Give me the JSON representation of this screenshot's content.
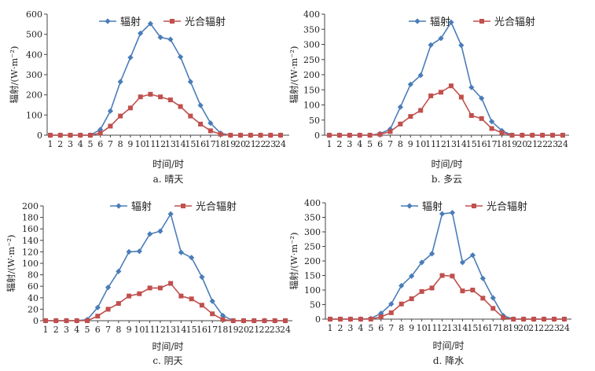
{
  "colors": {
    "radiation": "#4a7db8",
    "par": "#c0504d"
  },
  "chart_data": [
    {
      "type": "line",
      "caption": "a. 晴天",
      "xlabel": "时间/时",
      "ylabel": "辐射/(W·m⁻²)",
      "ylim": [
        0,
        600
      ],
      "yticks": [
        0,
        100,
        200,
        300,
        400,
        500,
        600
      ],
      "categories": [
        "1",
        "2",
        "3",
        "4",
        "5",
        "6",
        "7",
        "8",
        "9",
        "10",
        "11",
        "12",
        "13",
        "14",
        "15",
        "16",
        "17",
        "18",
        "19",
        "20",
        "21",
        "22",
        "23",
        "24"
      ],
      "legend": "top",
      "series": [
        {
          "name": "辐射",
          "values": [
            0,
            0,
            0,
            0,
            0,
            28,
            120,
            265,
            385,
            505,
            553,
            485,
            475,
            388,
            265,
            148,
            60,
            10,
            0,
            0,
            0,
            0,
            0,
            0
          ]
        },
        {
          "name": "光合辐射",
          "values": [
            0,
            0,
            0,
            0,
            0,
            10,
            45,
            95,
            135,
            190,
            203,
            190,
            175,
            142,
            95,
            55,
            22,
            5,
            0,
            0,
            0,
            0,
            0,
            0
          ]
        }
      ]
    },
    {
      "type": "line",
      "caption": "b. 多云",
      "xlabel": "时间/时",
      "ylabel": "辐射/(W·m⁻²)",
      "ylim": [
        0,
        400
      ],
      "yticks": [
        0,
        50,
        100,
        150,
        200,
        250,
        300,
        350,
        400
      ],
      "categories": [
        "1",
        "2",
        "3",
        "4",
        "5",
        "6",
        "7",
        "8",
        "9",
        "10",
        "11",
        "12",
        "13",
        "14",
        "15",
        "16",
        "17",
        "18",
        "19",
        "20",
        "21",
        "22",
        "23",
        "24"
      ],
      "legend": "top",
      "series": [
        {
          "name": "辐射",
          "values": [
            0,
            0,
            0,
            0,
            0,
            5,
            20,
            93,
            168,
            198,
            298,
            320,
            373,
            297,
            158,
            122,
            45,
            15,
            0,
            0,
            0,
            0,
            0,
            0
          ]
        },
        {
          "name": "光合辐射",
          "values": [
            0,
            0,
            0,
            0,
            0,
            3,
            12,
            37,
            62,
            82,
            130,
            142,
            163,
            126,
            65,
            55,
            22,
            8,
            0,
            0,
            0,
            0,
            0,
            0
          ]
        }
      ]
    },
    {
      "type": "line",
      "caption": "c. 阴天",
      "xlabel": "时间/时",
      "ylabel": "辐射/(W·m⁻²)",
      "ylim": [
        0,
        200
      ],
      "yticks": [
        0,
        20,
        40,
        60,
        80,
        100,
        120,
        140,
        160,
        180,
        200
      ],
      "categories": [
        "1",
        "2",
        "3",
        "4",
        "5",
        "6",
        "7",
        "8",
        "9",
        "10",
        "11",
        "12",
        "13",
        "14",
        "15",
        "16",
        "17",
        "18",
        "19",
        "20",
        "21",
        "22",
        "23",
        "24"
      ],
      "legend": "top",
      "series": [
        {
          "name": "辐射",
          "values": [
            0,
            0,
            0,
            0,
            2,
            23,
            58,
            86,
            120,
            121,
            151,
            156,
            186,
            119,
            110,
            76,
            34,
            9,
            0,
            0,
            0,
            0,
            0,
            0
          ]
        },
        {
          "name": "光合辐射",
          "values": [
            0,
            0,
            0,
            0,
            0,
            8,
            20,
            30,
            43,
            47,
            57,
            57,
            65,
            43,
            38,
            27,
            12,
            2,
            0,
            0,
            0,
            0,
            0,
            0
          ]
        }
      ]
    },
    {
      "type": "line",
      "caption": "d. 降水",
      "xlabel": "时间/时",
      "ylabel": "辐射/(W·m⁻²)",
      "ylim": [
        0,
        400
      ],
      "yticks": [
        0,
        50,
        100,
        150,
        200,
        250,
        300,
        350,
        400
      ],
      "categories": [
        "1",
        "2",
        "3",
        "4",
        "5",
        "6",
        "7",
        "8",
        "9",
        "10",
        "11",
        "12",
        "13",
        "14",
        "15",
        "16",
        "17",
        "18",
        "19",
        "20",
        "21",
        "22",
        "23",
        "24"
      ],
      "legend": "top",
      "series": [
        {
          "name": "辐射",
          "values": [
            0,
            0,
            0,
            0,
            2,
            20,
            52,
            115,
            148,
            195,
            225,
            362,
            366,
            195,
            220,
            140,
            73,
            12,
            0,
            0,
            0,
            0,
            0,
            0
          ]
        },
        {
          "name": "光合辐射",
          "values": [
            0,
            0,
            0,
            0,
            0,
            8,
            22,
            52,
            70,
            95,
            107,
            150,
            148,
            97,
            100,
            72,
            37,
            5,
            0,
            0,
            0,
            0,
            0,
            0
          ]
        }
      ]
    }
  ]
}
